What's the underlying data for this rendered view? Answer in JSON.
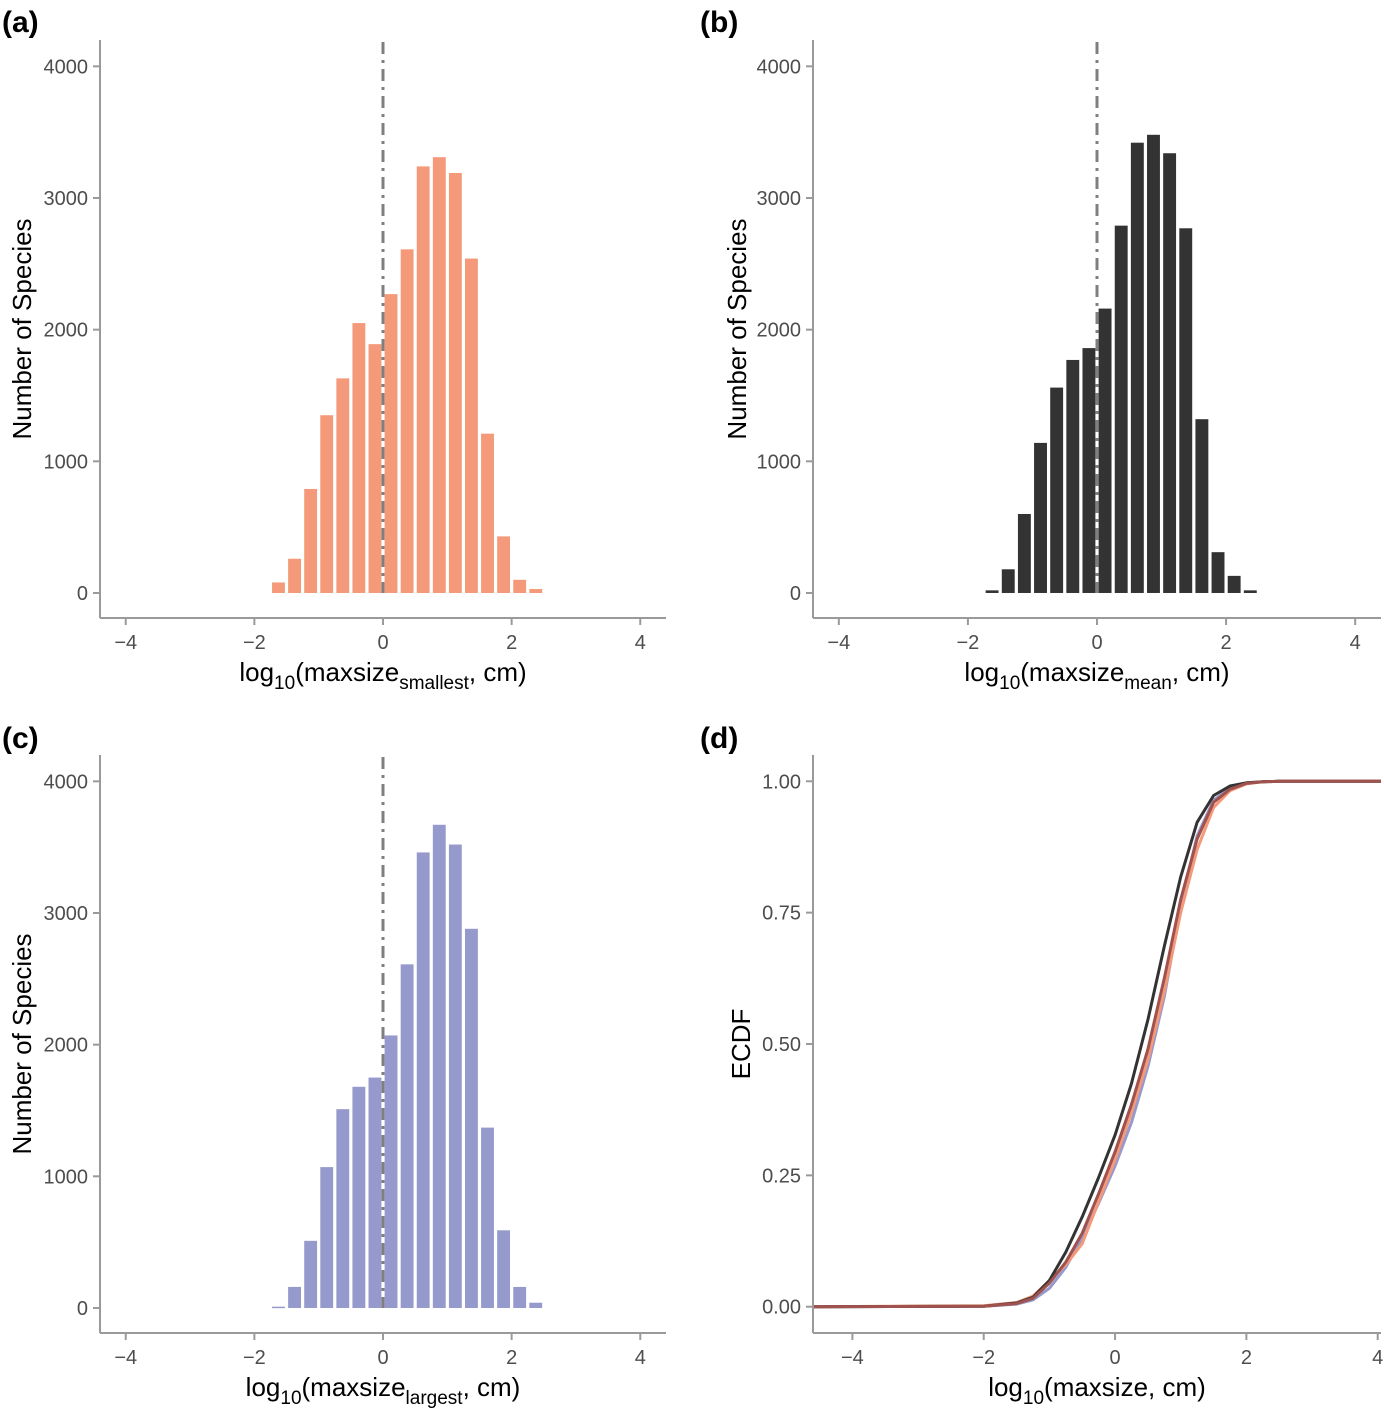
{
  "figure": {
    "panels": [
      {
        "label": "(a)",
        "ylabel": "Number of Species",
        "xlabel_prefix": "log",
        "xlabel_base": "10",
        "xlabel_mid": "(maxsize",
        "xlabel_sub": "smallest",
        "xlabel_suffix": ", cm)"
      },
      {
        "label": "(b)",
        "ylabel": "Number of Species",
        "xlabel_prefix": "log",
        "xlabel_base": "10",
        "xlabel_mid": "(maxsize",
        "xlabel_sub": "mean",
        "xlabel_suffix": ", cm)"
      },
      {
        "label": "(c)",
        "ylabel": "Number of Species",
        "xlabel_prefix": "log",
        "xlabel_base": "10",
        "xlabel_mid": "(maxsize",
        "xlabel_sub": "largest",
        "xlabel_suffix": ", cm)"
      },
      {
        "label": "(d)",
        "ylabel": "ECDF",
        "xlabel_prefix": "log",
        "xlabel_base": "10",
        "xlabel_mid": "(maxsize, cm)",
        "xlabel_sub": "",
        "xlabel_suffix": ""
      }
    ]
  },
  "chart_data": [
    {
      "type": "bar",
      "panel": "(a)",
      "color": "#f4997a",
      "bin_width": 0.25,
      "x": [
        -1.625,
        -1.375,
        -1.125,
        -0.875,
        -0.625,
        -0.375,
        -0.125,
        0.125,
        0.375,
        0.625,
        0.875,
        1.125,
        1.375,
        1.625,
        1.875,
        2.125,
        2.375,
        2.625,
        2.875
      ],
      "values": [
        80,
        260,
        790,
        1350,
        1630,
        2050,
        1890,
        2270,
        2610,
        3240,
        3310,
        3190,
        2540,
        1210,
        430,
        100,
        30,
        0,
        0
      ],
      "x_ticks": [
        -4,
        -2,
        0,
        2,
        4
      ],
      "y_ticks": [
        0,
        1000,
        2000,
        3000,
        4000
      ],
      "xlim": [
        -4.4,
        4.4
      ],
      "ylim": [
        -190,
        4200
      ],
      "reference_line_x": 0
    },
    {
      "type": "bar",
      "panel": "(b)",
      "color": "#333333",
      "bin_width": 0.25,
      "x": [
        -1.625,
        -1.375,
        -1.125,
        -0.875,
        -0.625,
        -0.375,
        -0.125,
        0.125,
        0.375,
        0.625,
        0.875,
        1.125,
        1.375,
        1.625,
        1.875,
        2.125,
        2.375,
        2.625,
        2.875
      ],
      "values": [
        20,
        180,
        600,
        1140,
        1560,
        1770,
        1860,
        2160,
        2790,
        3420,
        3480,
        3340,
        2770,
        1320,
        310,
        130,
        20,
        0,
        0
      ],
      "x_ticks": [
        -4,
        -2,
        0,
        2,
        4
      ],
      "y_ticks": [
        0,
        1000,
        2000,
        3000,
        4000
      ],
      "xlim": [
        -4.4,
        4.4
      ],
      "ylim": [
        -190,
        4200
      ],
      "reference_line_x": 0
    },
    {
      "type": "bar",
      "panel": "(c)",
      "color": "#9699cb",
      "bin_width": 0.25,
      "x": [
        -1.625,
        -1.375,
        -1.125,
        -0.875,
        -0.625,
        -0.375,
        -0.125,
        0.125,
        0.375,
        0.625,
        0.875,
        1.125,
        1.375,
        1.625,
        1.875,
        2.125,
        2.375,
        2.625,
        2.875
      ],
      "values": [
        10,
        160,
        510,
        1070,
        1510,
        1680,
        1750,
        2070,
        2610,
        3460,
        3670,
        3520,
        2880,
        1370,
        590,
        160,
        40,
        0,
        0
      ],
      "x_ticks": [
        -4,
        -2,
        0,
        2,
        4
      ],
      "y_ticks": [
        0,
        1000,
        2000,
        3000,
        4000
      ],
      "xlim": [
        -4.4,
        4.4
      ],
      "ylim": [
        -190,
        4200
      ],
      "reference_line_x": 0
    },
    {
      "type": "line",
      "panel": "(d)",
      "x_ticks": [
        -4,
        -2,
        0,
        2,
        4
      ],
      "y_ticks": [
        0.0,
        0.25,
        0.5,
        0.75,
        1.0
      ],
      "y_tick_labels": [
        "0.00",
        "0.25",
        "0.50",
        "0.75",
        "1.00"
      ],
      "xlim": [
        -4.6,
        4.05
      ],
      "ylim": [
        -0.05,
        1.05
      ],
      "series": [
        {
          "color": "#9699cb",
          "x": [
            -4.6,
            -2.0,
            -1.5,
            -1.25,
            -1.0,
            -0.75,
            -0.5,
            -0.25,
            0.0,
            0.25,
            0.5,
            0.75,
            1.0,
            1.25,
            1.5,
            1.75,
            2.0,
            2.25,
            2.5,
            3.0,
            4.05
          ],
          "y": [
            0,
            0.001,
            0.005,
            0.013,
            0.035,
            0.075,
            0.131,
            0.197,
            0.268,
            0.351,
            0.457,
            0.59,
            0.763,
            0.896,
            0.964,
            0.987,
            0.996,
            0.999,
            1,
            1,
            1
          ]
        },
        {
          "color": "#f4997a",
          "x": [
            -4.6,
            -2.0,
            -1.5,
            -1.25,
            -1.0,
            -0.75,
            -0.5,
            -0.25,
            0.0,
            0.25,
            0.5,
            0.75,
            1.0,
            1.25,
            1.5,
            1.75,
            2.0,
            2.25,
            2.5,
            3.0,
            4.05
          ],
          "y": [
            0,
            0.002,
            0.008,
            0.02,
            0.05,
            0.08,
            0.12,
            0.2,
            0.28,
            0.37,
            0.47,
            0.6,
            0.75,
            0.87,
            0.95,
            0.982,
            0.995,
            0.999,
            1,
            1,
            1
          ]
        },
        {
          "color": "#333333",
          "x": [
            -4.6,
            -2.0,
            -1.5,
            -1.25,
            -1.0,
            -0.75,
            -0.5,
            -0.25,
            0.0,
            0.25,
            0.5,
            0.75,
            1.0,
            1.25,
            1.5,
            1.75,
            2.0,
            2.25,
            2.5,
            3.0,
            4.05
          ],
          "y": [
            0,
            0.001,
            0.007,
            0.018,
            0.05,
            0.104,
            0.171,
            0.246,
            0.327,
            0.425,
            0.546,
            0.686,
            0.818,
            0.922,
            0.973,
            0.991,
            0.997,
            0.999,
            1,
            1,
            1
          ]
        },
        {
          "color": "#a0524e",
          "x": [
            -4.6,
            -2.0,
            -1.5,
            -1.25,
            -1.0,
            -0.75,
            -0.5,
            -0.25,
            0.0,
            0.25,
            0.5,
            0.75,
            1.0,
            1.25,
            1.5,
            1.75,
            2.0,
            2.25,
            2.5,
            3.0,
            4.05
          ],
          "y": [
            0,
            0.001,
            0.006,
            0.016,
            0.045,
            0.085,
            0.14,
            0.215,
            0.295,
            0.385,
            0.49,
            0.625,
            0.775,
            0.89,
            0.96,
            0.985,
            0.996,
            0.999,
            1,
            1,
            1
          ]
        }
      ]
    }
  ]
}
